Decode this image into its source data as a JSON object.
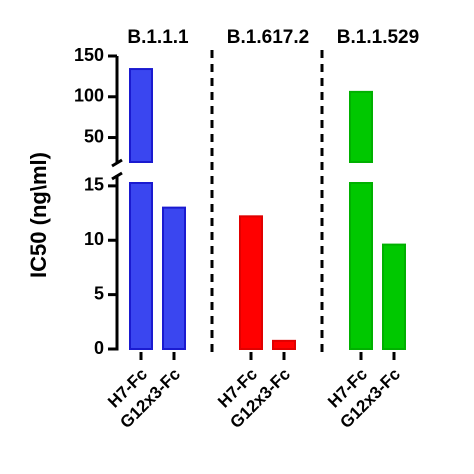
{
  "chart_data": {
    "type": "grouped-bar",
    "y_label": "IC50 (ng\\ml)",
    "axis_segments": [
      {
        "ylim": [
          0,
          16
        ],
        "yticks": [
          0,
          5,
          10,
          15
        ]
      },
      {
        "ylim": [
          20,
          150
        ],
        "yticks": [
          50,
          100,
          150
        ]
      }
    ],
    "groups": [
      {
        "name": "B.1.1.1",
        "color": "#3a46f0",
        "border": "#1a1ad0",
        "categories": [
          "H7-Fc",
          "G12x3-Fc"
        ],
        "values": [
          134,
          13
        ]
      },
      {
        "name": "B.1.617.2",
        "color": "#ff0000",
        "border": "#e00000",
        "categories": [
          "H7-Fc",
          "G12x3-Fc"
        ],
        "values": [
          12.2,
          0.75
        ]
      },
      {
        "name": "B.1.1.529",
        "color": "#00c800",
        "border": "#00b000",
        "categories": [
          "H7-Fc",
          "G12x3-Fc"
        ],
        "values": [
          106,
          9.6
        ]
      }
    ],
    "dividers": true
  }
}
